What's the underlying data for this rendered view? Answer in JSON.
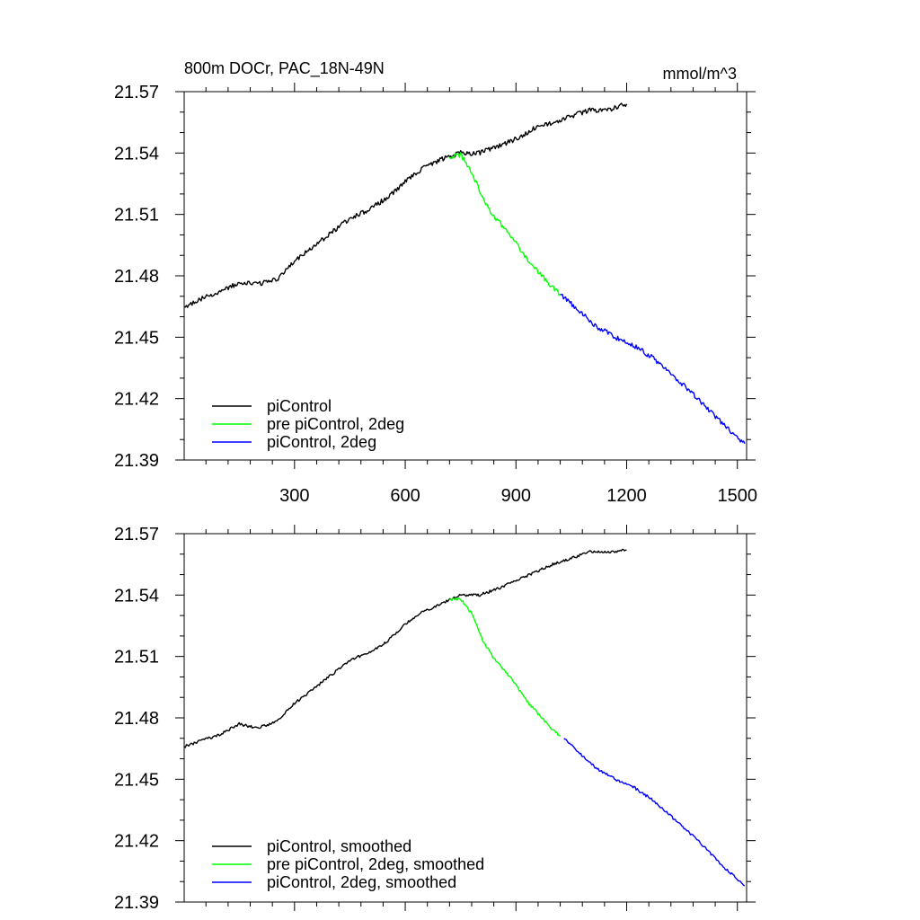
{
  "chart_data": [
    {
      "type": "line",
      "title": "800m DOCr, PAC_18N-49N",
      "units": "mmol/m^3",
      "xlim": [
        1,
        1525
      ],
      "ylim": [
        21.39,
        21.57
      ],
      "xticks": [
        300,
        600,
        900,
        1200,
        1500
      ],
      "xtick_labels": [
        "300",
        "600",
        "900",
        "1200",
        "1500"
      ],
      "yticks": [
        21.39,
        21.42,
        21.45,
        21.48,
        21.51,
        21.54,
        21.57
      ],
      "ytick_labels": [
        "21.39",
        "21.42",
        "21.45",
        "21.48",
        "21.51",
        "21.54",
        "21.57"
      ],
      "legend_position": "bottom-left",
      "series": [
        {
          "name": "piControl",
          "color": "#000000",
          "x": [
            1,
            50,
            100,
            150,
            200,
            250,
            300,
            350,
            400,
            450,
            500,
            550,
            600,
            650,
            700,
            750,
            800,
            850,
            900,
            950,
            1000,
            1050,
            1100,
            1150,
            1200
          ],
          "y": [
            21.465,
            21.469,
            21.472,
            21.477,
            21.476,
            21.478,
            21.487,
            21.494,
            21.501,
            21.508,
            21.512,
            21.518,
            21.526,
            21.533,
            21.537,
            21.54,
            21.54,
            21.543,
            21.547,
            21.552,
            21.555,
            21.558,
            21.561,
            21.561,
            21.564
          ]
        },
        {
          "name": "pre piControl, 2deg",
          "color": "#00ff00",
          "x": [
            720,
            750,
            780,
            810,
            840,
            870,
            900,
            930,
            960,
            990,
            1020
          ],
          "y": [
            21.538,
            21.539,
            21.531,
            21.518,
            21.509,
            21.503,
            21.496,
            21.488,
            21.482,
            21.476,
            21.471
          ]
        },
        {
          "name": "piControl, 2deg",
          "color": "#0000ff",
          "x": [
            1020,
            1070,
            1120,
            1170,
            1220,
            1270,
            1320,
            1370,
            1420,
            1470,
            1520
          ],
          "y": [
            21.471,
            21.463,
            21.455,
            21.45,
            21.446,
            21.44,
            21.432,
            21.424,
            21.415,
            21.406,
            21.398
          ]
        }
      ]
    },
    {
      "type": "line",
      "title": "",
      "xlim": [
        1,
        1525
      ],
      "ylim": [
        21.39,
        21.57
      ],
      "xticks": [
        300,
        600,
        900,
        1200,
        1500
      ],
      "yticks": [
        21.39,
        21.42,
        21.45,
        21.48,
        21.51,
        21.54,
        21.57
      ],
      "ytick_labels": [
        "21.39",
        "21.42",
        "21.45",
        "21.48",
        "21.51",
        "21.54",
        "21.57"
      ],
      "legend_position": "bottom-left",
      "series": [
        {
          "name": "piControl, smoothed",
          "color": "#000000",
          "x": [
            1,
            50,
            100,
            150,
            200,
            250,
            300,
            350,
            400,
            450,
            500,
            550,
            600,
            650,
            700,
            750,
            800,
            850,
            900,
            950,
            1000,
            1050,
            1100,
            1150,
            1200
          ],
          "y": [
            21.466,
            21.469,
            21.472,
            21.477,
            21.475,
            21.478,
            21.487,
            21.494,
            21.501,
            21.508,
            21.512,
            21.517,
            21.526,
            21.532,
            21.536,
            21.54,
            21.54,
            21.543,
            21.547,
            21.551,
            21.555,
            21.558,
            21.561,
            21.561,
            21.562
          ]
        },
        {
          "name": "pre piControl, 2deg, smoothed",
          "color": "#00ff00",
          "x": [
            720,
            750,
            780,
            810,
            840,
            870,
            900,
            930,
            960,
            990,
            1020
          ],
          "y": [
            21.538,
            21.538,
            21.531,
            21.518,
            21.509,
            21.503,
            21.496,
            21.488,
            21.482,
            21.476,
            21.471
          ]
        },
        {
          "name": "piControl, 2deg, smoothed",
          "color": "#0000ff",
          "x": [
            1030,
            1070,
            1120,
            1170,
            1220,
            1270,
            1320,
            1370,
            1420,
            1470,
            1520
          ],
          "y": [
            21.47,
            21.463,
            21.455,
            21.45,
            21.446,
            21.44,
            21.432,
            21.424,
            21.415,
            21.406,
            21.398
          ]
        }
      ]
    }
  ]
}
